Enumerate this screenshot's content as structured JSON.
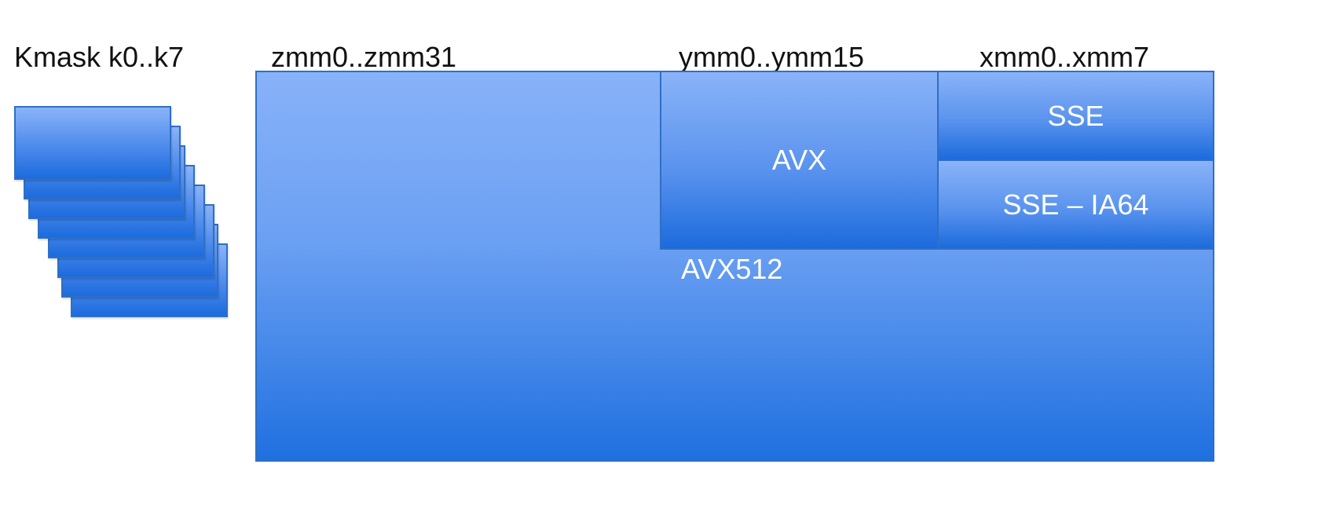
{
  "labels": {
    "kmask": "Kmask k0..k7",
    "zmm": "zmm0..zmm31",
    "ymm": "ymm0..ymm15",
    "xmm": "xmm0..xmm7"
  },
  "regions": {
    "avx512": "AVX512",
    "avx": "AVX",
    "sse": "SSE",
    "sse_ia64": "SSE – IA64"
  },
  "kmask_stack_count": 8,
  "colors": {
    "fill_light": "#88b2f9",
    "fill_dark": "#1f70e0",
    "border": "#2f6fc4",
    "text_light": "#ffffff",
    "text_dark": "#111111"
  }
}
